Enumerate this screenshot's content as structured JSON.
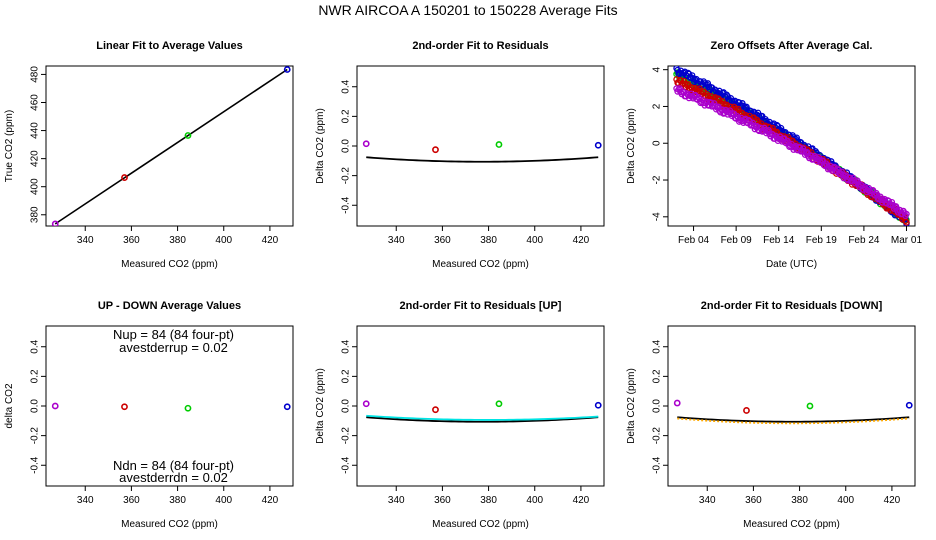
{
  "figure": {
    "title": "NWR   AIRCOA A   150201 to 150228   Average Fits"
  },
  "colors": {
    "green": "#00cc00",
    "red": "#cc0000",
    "blue": "#0000cc",
    "purple": "#aa00cc",
    "cyan": "#00e5e5",
    "orange": "#ffaa00",
    "black": "#000000"
  },
  "chart_data": [
    {
      "id": "p1",
      "type": "scatter",
      "title": "Linear Fit to Average Values",
      "xlabel": "Measured CO2 (ppm)",
      "ylabel": "True CO2 (ppm)",
      "xlim": [
        323,
        430
      ],
      "ylim": [
        372,
        486
      ],
      "xticks": [
        340,
        360,
        380,
        400,
        420
      ],
      "yticks": [
        380,
        400,
        420,
        440,
        460,
        480
      ],
      "points": [
        {
          "x": 327,
          "y": 373.5,
          "color": "purple"
        },
        {
          "x": 357,
          "y": 406.5,
          "color": "red"
        },
        {
          "x": 384.5,
          "y": 436.5,
          "color": "green"
        },
        {
          "x": 427.5,
          "y": 483.5,
          "color": "blue"
        }
      ],
      "lines": [
        {
          "x": [
            327,
            427.5
          ],
          "y": [
            373.5,
            483.5
          ],
          "color": "black"
        }
      ]
    },
    {
      "id": "p2",
      "type": "scatter",
      "title": "2nd-order Fit to Residuals",
      "xlabel": "Measured CO2 (ppm)",
      "ylabel": "Delta CO2 (ppm)",
      "xlim": [
        323,
        430
      ],
      "ylim": [
        -0.54,
        0.54
      ],
      "xticks": [
        340,
        360,
        380,
        400,
        420
      ],
      "yticks": [
        -0.4,
        -0.2,
        0,
        0.2,
        0.4
      ],
      "yticklabels": [
        "-0.4",
        "-0.2",
        "0.0",
        "0.2",
        "0.4"
      ],
      "points": [
        {
          "x": 327,
          "y": 0.015,
          "color": "purple"
        },
        {
          "x": 357,
          "y": -0.025,
          "color": "red"
        },
        {
          "x": 384.5,
          "y": 0.01,
          "color": "green"
        },
        {
          "x": 427.5,
          "y": 0.005,
          "color": "blue"
        }
      ],
      "curves": [
        {
          "coef": [
            1.2e-05,
            -0.00905,
            1.6
          ],
          "range": [
            327,
            427.5
          ],
          "color": "black"
        }
      ]
    },
    {
      "id": "p3",
      "type": "scatter",
      "title": "Zero Offsets After Average Cal.",
      "xlabel": "Date (UTC)",
      "ylabel": "Delta CO2 (ppm)",
      "xlim": [
        0,
        29
      ],
      "ylim": [
        -4.5,
        4.2
      ],
      "xticks": [
        3,
        8,
        13,
        18,
        23,
        28
      ],
      "xticklabels": [
        "Feb 04",
        "Feb 09",
        "Feb 14",
        "Feb 19",
        "Feb 24",
        "Mar 01"
      ],
      "yticks": [
        -4,
        -2,
        0,
        2,
        4
      ],
      "series": [
        {
          "color": "green",
          "start": 3.6,
          "end": -4.2,
          "offset": 0.1
        },
        {
          "color": "blue",
          "start": 3.8,
          "end": -4.25,
          "offset": 0.2
        },
        {
          "color": "red",
          "start": 3.4,
          "end": -4.15,
          "offset": 0.0
        },
        {
          "color": "purple",
          "start": 3.15,
          "end": -3.9,
          "offset": -0.25
        }
      ],
      "time_range": [
        1,
        28
      ]
    },
    {
      "id": "p4",
      "type": "scatter",
      "title": "UP - DOWN Average Values",
      "xlabel": "Measured CO2 (ppm)",
      "ylabel": "delta CO2",
      "xlim": [
        323,
        430
      ],
      "ylim": [
        -0.54,
        0.54
      ],
      "xticks": [
        340,
        360,
        380,
        400,
        420
      ],
      "yticks": [
        -0.4,
        -0.2,
        0,
        0.2,
        0.4
      ],
      "yticklabels": [
        "-0.4",
        "-0.2",
        "0.0",
        "0.2",
        "0.4"
      ],
      "points": [
        {
          "x": 327,
          "y": 0.0,
          "color": "purple"
        },
        {
          "x": 357,
          "y": -0.005,
          "color": "red"
        },
        {
          "x": 384.5,
          "y": -0.015,
          "color": "green"
        },
        {
          "x": 427.5,
          "y": -0.005,
          "color": "blue"
        }
      ],
      "annotations": {
        "top1": "Nup = 84 (84 four-pt)",
        "top2": "avestderrup =  0.02",
        "bottom1": "Ndn = 84 (84 four-pt)",
        "bottom2": "avestderrdn =  0.02"
      }
    },
    {
      "id": "p5",
      "type": "scatter",
      "title": "2nd-order Fit to Residuals [UP]",
      "xlabel": "Measured CO2 (ppm)",
      "ylabel": "Delta CO2 (ppm)",
      "xlim": [
        323,
        430
      ],
      "ylim": [
        -0.54,
        0.54
      ],
      "xticks": [
        340,
        360,
        380,
        400,
        420
      ],
      "yticks": [
        -0.4,
        -0.2,
        0,
        0.2,
        0.4
      ],
      "yticklabels": [
        "-0.4",
        "-0.2",
        "0.0",
        "0.2",
        "0.4"
      ],
      "points": [
        {
          "x": 327,
          "y": 0.015,
          "color": "purple"
        },
        {
          "x": 357,
          "y": -0.025,
          "color": "red"
        },
        {
          "x": 384.5,
          "y": 0.015,
          "color": "green"
        },
        {
          "x": 427.5,
          "y": 0.005,
          "color": "blue"
        }
      ],
      "curves": [
        {
          "coef": [
            1.2e-05,
            -0.00905,
            1.6
          ],
          "range": [
            327,
            427.5
          ],
          "color": "black"
        },
        {
          "coef": [
            1e-05,
            -0.0076,
            1.35
          ],
          "range": [
            327,
            427.5
          ],
          "color": "cyan"
        }
      ]
    },
    {
      "id": "p6",
      "type": "scatter",
      "title": "2nd-order Fit to Residuals [DOWN]",
      "xlabel": "Measured CO2 (ppm)",
      "ylabel": "Delta CO2 (ppm)",
      "xlim": [
        323,
        430
      ],
      "ylim": [
        -0.54,
        0.54
      ],
      "xticks": [
        340,
        360,
        380,
        400,
        420
      ],
      "yticks": [
        -0.4,
        -0.2,
        0,
        0.2,
        0.4
      ],
      "yticklabels": [
        "-0.4",
        "-0.2",
        "0.0",
        "0.2",
        "0.4"
      ],
      "points": [
        {
          "x": 327,
          "y": 0.02,
          "color": "purple"
        },
        {
          "x": 357,
          "y": -0.03,
          "color": "red"
        },
        {
          "x": 384.5,
          "y": 0.0,
          "color": "green"
        },
        {
          "x": 427.5,
          "y": 0.005,
          "color": "blue"
        }
      ],
      "curves": [
        {
          "coef": [
            1.2e-05,
            -0.00905,
            1.6
          ],
          "range": [
            327,
            427.5
          ],
          "color": "black"
        },
        {
          "coef": [
            1.3e-05,
            -0.0098,
            1.73
          ],
          "range": [
            327,
            427.5
          ],
          "color": "orange",
          "dashed": true
        }
      ]
    }
  ]
}
